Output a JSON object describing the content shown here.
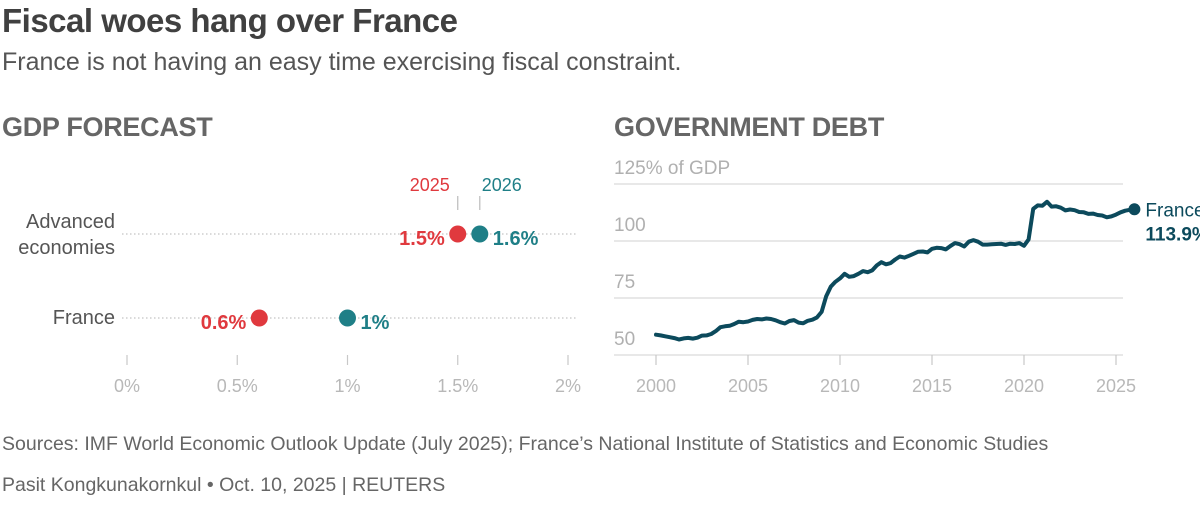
{
  "header": {
    "title": "Fiscal woes hang over France",
    "subtitle": "France is not having an easy time exercising fiscal constraint."
  },
  "colors": {
    "series_2025": "#e0393e",
    "series_2026": "#1f7f87",
    "debt_line": "#0c4a5c",
    "gridline": "#d9d9d9",
    "dotted_rule": "#c4c4c4",
    "tick_text": "#b8b8b8"
  },
  "chart_data": [
    {
      "type": "dot-range",
      "title": "GDP FORECAST",
      "legend": [
        "2025",
        "2026"
      ],
      "legend_placement": "top, above first row",
      "categories": [
        "Advanced economies",
        "France"
      ],
      "category_lines": [
        [
          "Advanced",
          "economies"
        ],
        [
          "France"
        ]
      ],
      "series": [
        {
          "name": "2025",
          "values": [
            1.5,
            0.6
          ],
          "labels": [
            "1.5%",
            "0.6%"
          ]
        },
        {
          "name": "2026",
          "values": [
            1.6,
            1.0
          ],
          "labels": [
            "1.6%",
            "1%"
          ]
        }
      ],
      "xlim": [
        0,
        2
      ],
      "xticks": [
        0,
        0.5,
        1,
        1.5,
        2
      ],
      "xtick_labels": [
        "0%",
        "0.5%",
        "1%",
        "1.5%",
        "2%"
      ],
      "unit": "% GDP growth"
    },
    {
      "type": "line",
      "title": "GOVERNMENT DEBT",
      "ylabel": "% of GDP",
      "ylim": [
        50,
        125
      ],
      "yticks": [
        50,
        75,
        100,
        125
      ],
      "ytick_labels": [
        "50",
        "75",
        "100",
        "125% of GDP"
      ],
      "xlim": [
        2000,
        2025
      ],
      "xticks": [
        2000,
        2005,
        2010,
        2015,
        2020,
        2025
      ],
      "xtick_labels": [
        "2000",
        "2005",
        "2010",
        "2015",
        "2020",
        "2025"
      ],
      "grid": true,
      "series": [
        {
          "name": "France",
          "end_label": "113.9%",
          "x_start": 2000,
          "x_step": 0.25,
          "values": [
            58.9,
            58.6,
            58.2,
            57.8,
            57.4,
            56.8,
            57.3,
            57.5,
            57.2,
            57.6,
            58.5,
            58.6,
            59.2,
            60.5,
            62.2,
            62.6,
            62.8,
            63.6,
            64.6,
            64.4,
            64.7,
            65.4,
            65.8,
            65.6,
            66.0,
            65.8,
            65.2,
            64.4,
            63.8,
            64.9,
            65.3,
            64.2,
            63.9,
            65.0,
            65.5,
            66.5,
            68.9,
            75.8,
            80.0,
            82.1,
            83.6,
            85.6,
            84.3,
            84.6,
            85.6,
            86.8,
            86.3,
            87.1,
            89.3,
            90.7,
            89.8,
            90.3,
            91.9,
            93.2,
            92.7,
            93.5,
            94.4,
            95.3,
            95.4,
            95.0,
            96.6,
            97.0,
            96.9,
            96.3,
            97.8,
            99.1,
            98.6,
            97.6,
            99.7,
            100.4,
            99.7,
            98.4,
            98.4,
            98.6,
            98.7,
            98.8,
            98.3,
            98.8,
            98.7,
            99.1,
            97.9,
            100.7,
            114.1,
            115.6,
            115.5,
            117.2,
            115.1,
            115.2,
            114.6,
            113.4,
            113.8,
            113.5,
            112.7,
            112.6,
            111.9,
            112.0,
            111.4,
            111.2,
            110.4,
            110.8,
            111.6,
            112.6,
            113.3,
            113.7,
            113.9
          ]
        }
      ]
    }
  ],
  "footer": {
    "sources": "Sources: IMF World Economic Outlook Update (July 2025); France’s National Institute of Statistics and Economic Studies",
    "byline": "Pasit Kongkunakornkul • Oct. 10, 2025 | REUTERS"
  }
}
